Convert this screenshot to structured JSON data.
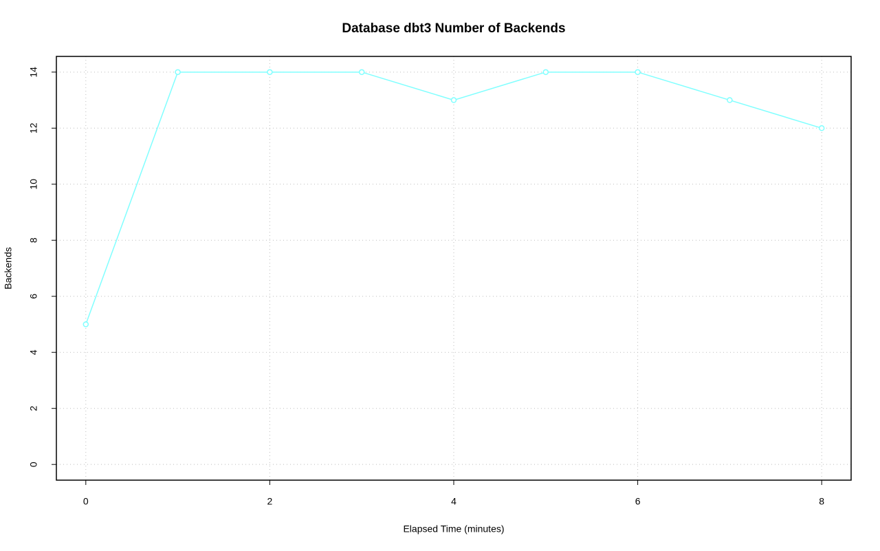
{
  "chart_data": {
    "type": "line",
    "title": "Database dbt3 Number of Backends",
    "x_label": "Elapsed Time (minutes)",
    "y_label": "Backends",
    "x": [
      0,
      1,
      2,
      3,
      4,
      5,
      6,
      7,
      8
    ],
    "values": [
      5,
      14,
      14,
      14,
      13,
      14,
      14,
      13,
      12
    ],
    "color": "#80ffff",
    "xlim": [
      -0.32,
      8.32
    ],
    "xticks": [
      0,
      2,
      4,
      6,
      8
    ],
    "ylim": [
      -0.56,
      14.56
    ],
    "yticks": [
      0,
      2,
      4,
      6,
      8,
      10,
      12,
      14
    ],
    "grid": true
  }
}
